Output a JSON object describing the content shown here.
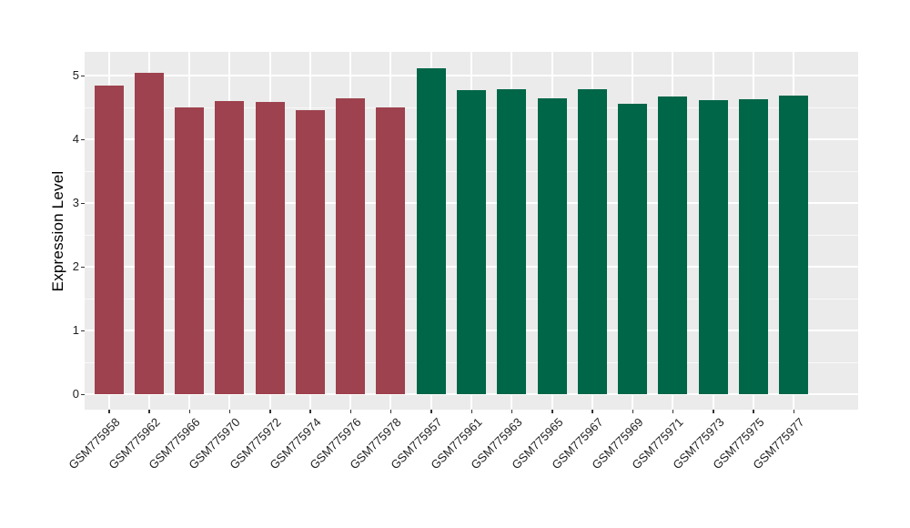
{
  "figure": {
    "background": "#FFFFFF",
    "panel_background": "#EBEBEB",
    "gridline_color": "#FFFFFF"
  },
  "chart_data": {
    "type": "bar",
    "title": "",
    "xlabel": "",
    "ylabel": "Expression Level",
    "categories": [
      "GSM775958",
      "GSM775962",
      "GSM775966",
      "GSM775970",
      "GSM775972",
      "GSM775974",
      "GSM775976",
      "GSM775978",
      "GSM775957",
      "GSM775961",
      "GSM775963",
      "GSM775965",
      "GSM775967",
      "GSM775969",
      "GSM775971",
      "GSM775973",
      "GSM775975",
      "GSM775977"
    ],
    "values": [
      4.85,
      5.05,
      4.5,
      4.6,
      4.58,
      4.46,
      4.64,
      4.5,
      5.12,
      4.77,
      4.79,
      4.64,
      4.78,
      4.56,
      4.67,
      4.61,
      4.63,
      4.68
    ],
    "bar_colors": [
      "#9D424E",
      "#9D424E",
      "#9D424E",
      "#9D424E",
      "#9D424E",
      "#9D424E",
      "#9D424E",
      "#9D424E",
      "#006648",
      "#006648",
      "#006648",
      "#006648",
      "#006648",
      "#006648",
      "#006648",
      "#006648",
      "#006648",
      "#006648"
    ],
    "group_palette": {
      "left_group_color": "#9D424E",
      "right_group_color": "#006648"
    },
    "yticks": [
      0,
      1,
      2,
      3,
      4,
      5
    ],
    "ytick_labels": [
      "0",
      "1",
      "2",
      "3",
      "4",
      "5"
    ],
    "yminor": [
      0.5,
      1.5,
      2.5,
      3.5,
      4.5
    ],
    "ylim": [
      -0.26,
      5.38
    ],
    "x_label_rotation_deg": 45,
    "grid": "white major horizontal lines at integers, minor at halves, vertical major lines at category centers, on gray panel",
    "legend": "none"
  }
}
